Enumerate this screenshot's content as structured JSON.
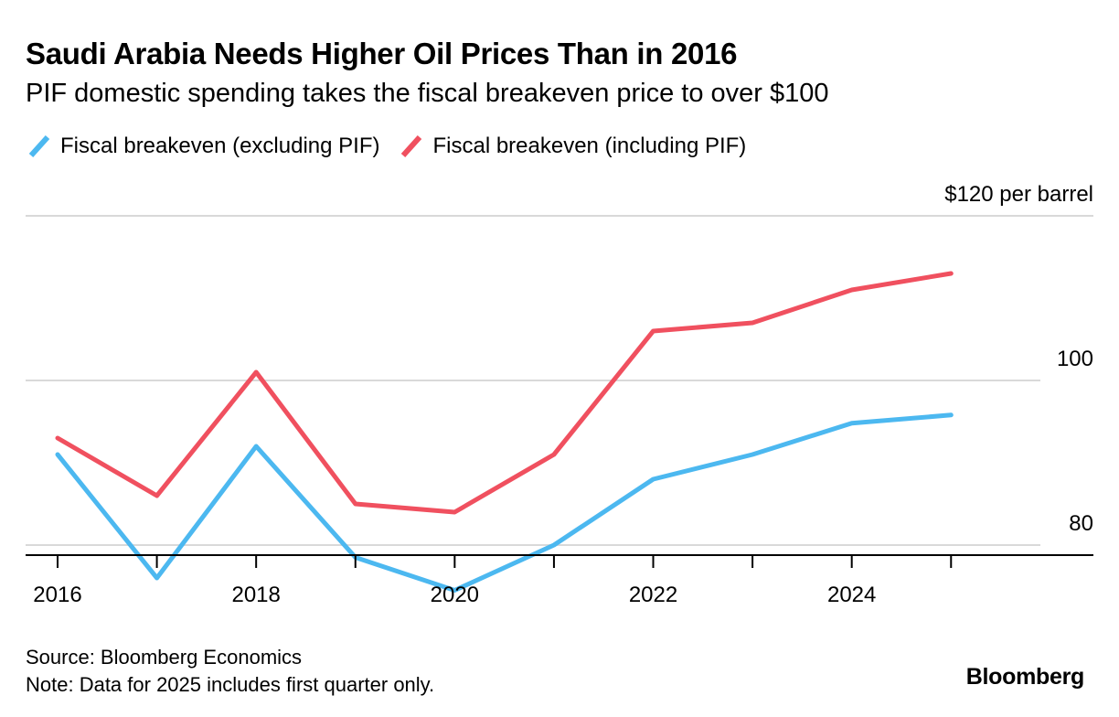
{
  "header": {
    "title": "Saudi Arabia Needs Higher Oil Prices Than in 2016",
    "subtitle": "PIF domestic spending takes the fiscal breakeven price to over $100"
  },
  "colors": {
    "excluding": "#4cb8f0",
    "including": "#f0505f",
    "grid": "#d9d9d9",
    "axis": "#000000"
  },
  "chart_data": {
    "type": "line",
    "x": [
      2016,
      2017,
      2018,
      2019,
      2020,
      2021,
      2022,
      2023,
      2024,
      2025
    ],
    "series": [
      {
        "name": "Fiscal breakeven (excluding PIF)",
        "values": [
          91,
          76,
          92,
          78.5,
          74.5,
          80,
          88,
          91,
          94.8,
          95.8
        ]
      },
      {
        "name": "Fiscal breakeven (including PIF)",
        "values": [
          93,
          86,
          101,
          85,
          84,
          91,
          106,
          107,
          111,
          113
        ]
      }
    ],
    "xlim": [
      2016,
      2025.9
    ],
    "ylim": [
      70,
      120
    ],
    "x_ticks": [
      "2016",
      "2018",
      "2020",
      "2022",
      "2024"
    ],
    "y_ticks": [
      {
        "value": 80,
        "label": "80"
      },
      {
        "value": 100,
        "label": "100"
      },
      {
        "value": 120,
        "label": "$120 per barrel"
      }
    ],
    "grid": true,
    "legend_position": "top-left"
  },
  "footer": {
    "source": "Source: Bloomberg Economics",
    "note": "Note: Data for 2025 includes first quarter only.",
    "brand": "Bloomberg"
  }
}
